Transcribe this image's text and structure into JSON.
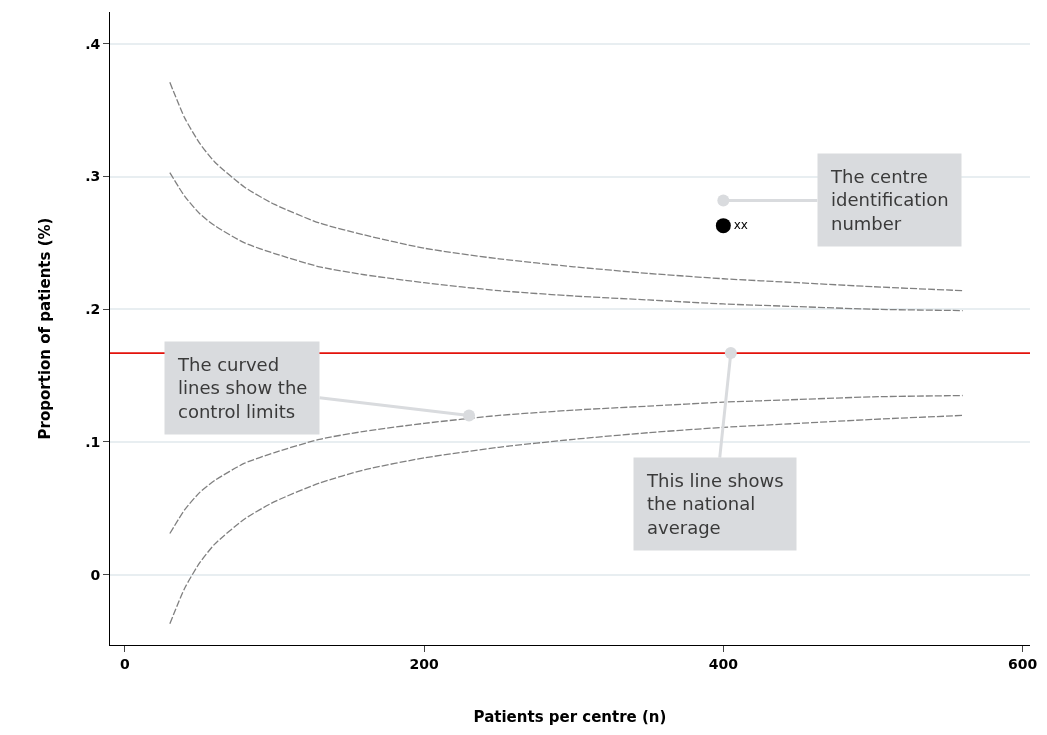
{
  "chart_data": {
    "type": "line",
    "xlabel": "Patients per centre (n)",
    "ylabel": "Proportion of patients (%)",
    "xlim": [
      -10,
      605
    ],
    "ylim": [
      -0.053,
      0.424
    ],
    "xticks": [
      0,
      200,
      400,
      600
    ],
    "yticks": [
      {
        "value": 0,
        "label": "0"
      },
      {
        "value": 0.1,
        "label": ".1"
      },
      {
        "value": 0.2,
        "label": ".2"
      },
      {
        "value": 0.3,
        "label": ".3"
      },
      {
        "value": 0.4,
        "label": ".4"
      }
    ],
    "grid": "y",
    "line_style": "dashed",
    "marker": "none",
    "x": [
      30,
      40,
      50,
      60,
      80,
      100,
      130,
      160,
      200,
      250,
      300,
      350,
      400,
      450,
      500,
      560
    ],
    "series": [
      {
        "color": "#808080",
        "values": [
          0.371,
          0.344,
          0.325,
          0.311,
          0.292,
          0.279,
          0.265,
          0.256,
          0.246,
          0.238,
          0.232,
          0.227,
          0.223,
          0.22,
          0.217,
          0.214
        ]
      },
      {
        "color": "#808080",
        "values": [
          0.303,
          0.285,
          0.272,
          0.263,
          0.25,
          0.242,
          0.232,
          0.226,
          0.22,
          0.214,
          0.21,
          0.207,
          0.204,
          0.202,
          0.2,
          0.199
        ]
      },
      {
        "color": "#808080",
        "values": [
          0.031,
          0.049,
          0.062,
          0.071,
          0.084,
          0.092,
          0.102,
          0.108,
          0.114,
          0.12,
          0.124,
          0.127,
          0.13,
          0.132,
          0.134,
          0.135
        ]
      },
      {
        "color": "#808080",
        "values": [
          -0.037,
          -0.01,
          0.009,
          0.023,
          0.042,
          0.055,
          0.069,
          0.079,
          0.088,
          0.096,
          0.102,
          0.107,
          0.111,
          0.114,
          0.117,
          0.12
        ]
      },
      {
        "type": "scatter",
        "color": "#000000",
        "marker": "circle",
        "x": [
          400
        ],
        "values": [
          0.263
        ],
        "value_labels": [
          "xx"
        ]
      }
    ],
    "ref_lines": [
      {
        "axis": "y",
        "value": 0.167,
        "color": "#e3120b",
        "line_style": "solid"
      }
    ],
    "annotations": [
      {
        "text": "The centre\nidentification\nnumber",
        "x": 400,
        "y": 0.282
      },
      {
        "text": "The curved\nlines show the\ncontrol limits",
        "x": 230,
        "y": 0.12
      },
      {
        "text": "This line shows\nthe national\naverage",
        "x": 405,
        "y": 0.167
      }
    ]
  }
}
